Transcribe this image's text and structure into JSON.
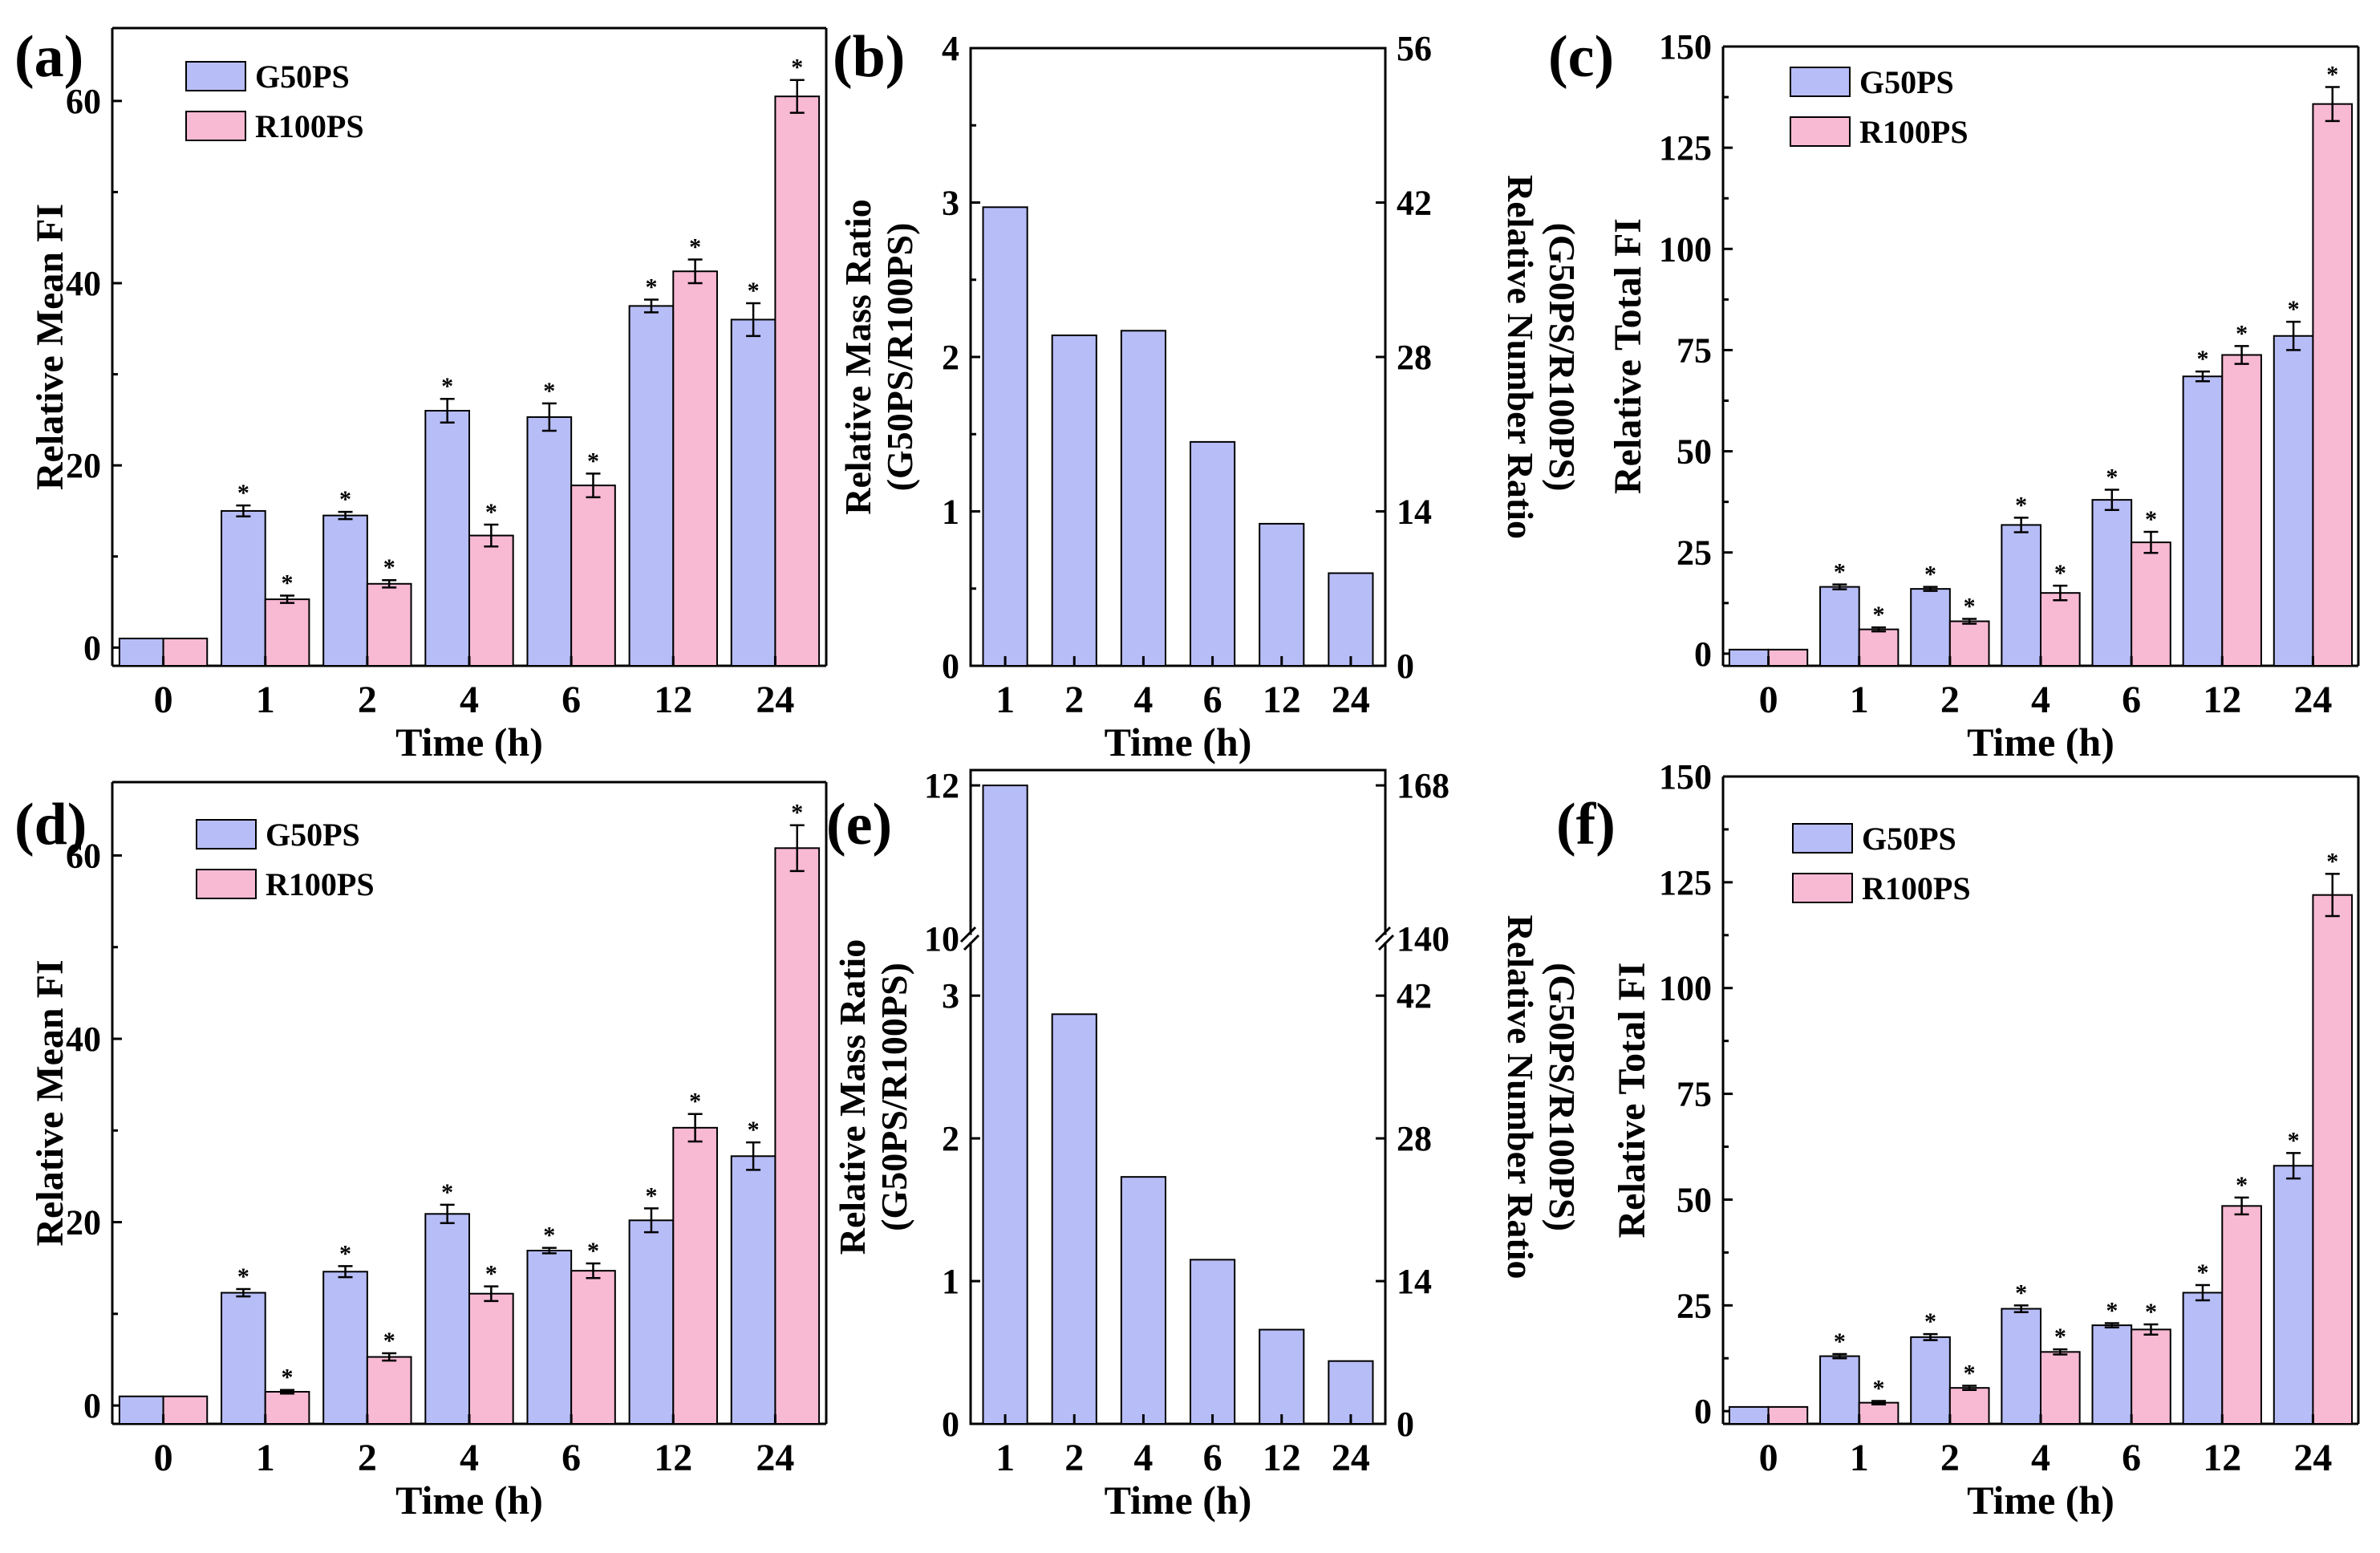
{
  "figure": {
    "colors": {
      "g50ps": "#b7bdf7",
      "r100ps": "#f8b9d3",
      "axis": "#000000"
    },
    "star": "*"
  },
  "chart_data": [
    {
      "panel": "(a)",
      "type": "bar",
      "categories": [
        "0",
        "1",
        "2",
        "4",
        "6",
        "12",
        "24"
      ],
      "series": [
        {
          "name": "G50PS",
          "values": [
            1,
            15,
            14.5,
            26,
            25.3,
            37.5,
            36
          ],
          "errors": [
            0,
            0.6,
            0.4,
            1.3,
            1.5,
            0.7,
            1.8
          ],
          "sig": [
            false,
            true,
            true,
            true,
            true,
            true,
            true
          ]
        },
        {
          "name": "R100PS",
          "values": [
            1,
            5.3,
            7,
            12.3,
            17.8,
            41.3,
            60.5
          ],
          "errors": [
            0,
            0.4,
            0.4,
            1.2,
            1.3,
            1.3,
            1.8
          ],
          "sig": [
            false,
            true,
            true,
            true,
            true,
            true,
            true
          ]
        }
      ],
      "xlabel": "Time (h)",
      "ylabel": "Relative Mean FI",
      "ylim": [
        -2,
        68
      ],
      "yticks": [
        0,
        20,
        40,
        60
      ],
      "legend": "top-left"
    },
    {
      "panel": "(b)",
      "type": "bar",
      "categories": [
        "1",
        "2",
        "4",
        "6",
        "12",
        "24"
      ],
      "series": [
        {
          "name": "Relative Mass Ratio",
          "values": [
            2.97,
            2.14,
            2.17,
            1.45,
            0.92,
            0.6
          ]
        }
      ],
      "xlabel": "Time (h)",
      "ylabel": [
        "Relative Mass Ratio",
        "(G50PS/R100PS)"
      ],
      "y2label": [
        "Relative Number Ratio",
        "(G50PS/R100PS)"
      ],
      "ylim": [
        0,
        4
      ],
      "yticks": [
        0,
        1,
        2,
        3,
        4
      ],
      "y2lim": [
        0,
        56
      ],
      "y2ticks": [
        0,
        14,
        28,
        42,
        56
      ]
    },
    {
      "panel": "(c)",
      "type": "bar",
      "categories": [
        "0",
        "1",
        "2",
        "4",
        "6",
        "12",
        "24"
      ],
      "series": [
        {
          "name": "G50PS",
          "values": [
            1,
            16.5,
            16,
            31.8,
            38,
            68.5,
            78.5
          ],
          "errors": [
            0,
            0.6,
            0.5,
            1.8,
            2.5,
            1.2,
            3.5
          ],
          "sig": [
            false,
            true,
            true,
            true,
            true,
            true,
            true
          ]
        },
        {
          "name": "R100PS",
          "values": [
            1,
            6,
            8,
            15,
            27.5,
            73.8,
            135.8
          ],
          "errors": [
            0,
            0.5,
            0.6,
            1.8,
            2.6,
            2.2,
            4.2
          ],
          "sig": [
            false,
            true,
            true,
            true,
            true,
            true,
            true
          ]
        }
      ],
      "xlabel": "Time (h)",
      "ylabel": "Relative Total FI",
      "ylim": [
        -3,
        150
      ],
      "yticks": [
        0,
        25,
        50,
        75,
        100,
        125,
        150
      ],
      "legend": "top-left"
    },
    {
      "panel": "(d)",
      "type": "bar",
      "categories": [
        "0",
        "1",
        "2",
        "4",
        "6",
        "12",
        "24"
      ],
      "series": [
        {
          "name": "G50PS",
          "values": [
            1,
            12.3,
            14.6,
            20.9,
            16.9,
            20.2,
            27.2
          ],
          "errors": [
            0,
            0.4,
            0.6,
            1.0,
            0.3,
            1.3,
            1.5
          ],
          "sig": [
            false,
            true,
            true,
            true,
            true,
            true,
            true
          ]
        },
        {
          "name": "R100PS",
          "values": [
            1,
            1.5,
            5.3,
            12.2,
            14.7,
            30.3,
            60.8
          ],
          "errors": [
            0,
            0.2,
            0.4,
            0.8,
            0.8,
            1.5,
            2.5
          ],
          "sig": [
            false,
            true,
            true,
            true,
            true,
            true,
            true
          ]
        }
      ],
      "xlabel": "Time (h)",
      "ylabel": "Relative Mean FI",
      "ylim": [
        -2,
        68
      ],
      "yticks": [
        0,
        20,
        40,
        60
      ],
      "legend": "top-left"
    },
    {
      "panel": "(e)",
      "type": "bar",
      "categories": [
        "1",
        "2",
        "4",
        "6",
        "12",
        "24"
      ],
      "series": [
        {
          "name": "Relative Mass Ratio",
          "values": [
            12,
            2.87,
            1.73,
            1.15,
            0.66,
            0.44
          ]
        }
      ],
      "xlabel": "Time (h)",
      "ylabel": [
        "Relative Mass Ratio",
        "(G50PS/R100PS)"
      ],
      "y2label": [
        "Relative Number Ratio",
        "(G50PS/R100PS)"
      ],
      "ylim": [
        0,
        12.2
      ],
      "yticks": [
        0,
        1,
        2,
        3,
        10,
        12
      ],
      "y2ticks": [
        0,
        14,
        28,
        42,
        140,
        168
      ],
      "axis_break": [
        3.4,
        10
      ]
    },
    {
      "panel": "(f)",
      "type": "bar",
      "categories": [
        "0",
        "1",
        "2",
        "4",
        "6",
        "12",
        "24"
      ],
      "series": [
        {
          "name": "G50PS",
          "values": [
            1,
            13,
            17.5,
            24.2,
            20.3,
            28,
            58
          ],
          "errors": [
            0,
            0.5,
            0.7,
            0.8,
            0.5,
            1.8,
            3.0
          ],
          "sig": [
            false,
            true,
            true,
            true,
            true,
            true,
            true
          ]
        },
        {
          "name": "R100PS",
          "values": [
            1,
            2,
            5.5,
            14,
            19.3,
            48.5,
            122
          ],
          "errors": [
            0,
            0.4,
            0.5,
            0.6,
            1.2,
            2.0,
            5.0
          ],
          "sig": [
            false,
            true,
            true,
            true,
            true,
            true,
            true
          ]
        }
      ],
      "xlabel": "Time (h)",
      "ylabel": "Relative Total FI",
      "ylim": [
        -3,
        150
      ],
      "yticks": [
        0,
        25,
        50,
        75,
        100,
        125,
        150
      ],
      "legend": "top-left"
    }
  ]
}
